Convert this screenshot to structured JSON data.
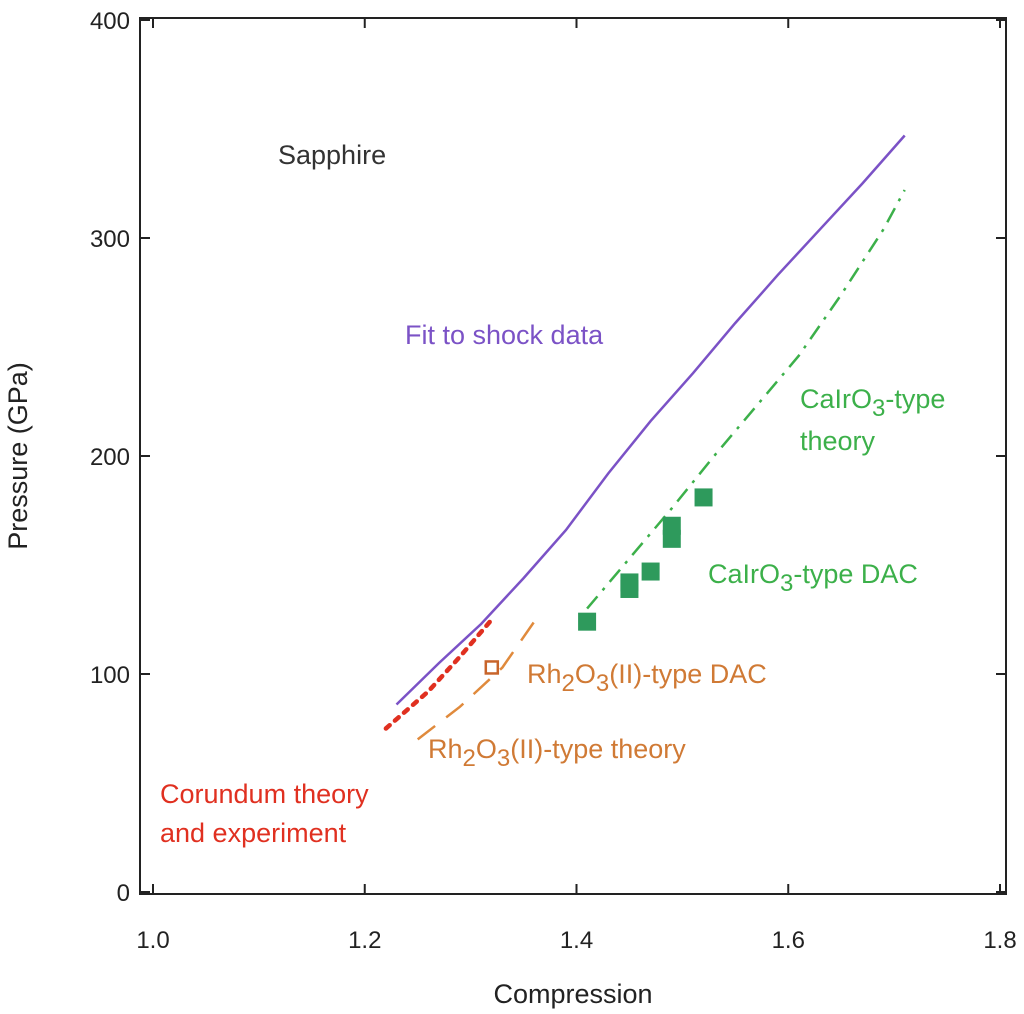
{
  "chart_data": {
    "type": "scatter",
    "title": "",
    "xlabel": "Compression",
    "ylabel": "Pressure (GPa)",
    "xlim": [
      1.0,
      1.8
    ],
    "ylim": [
      0,
      400
    ],
    "x_ticks": [
      "1.0",
      "1.2",
      "1.4",
      "1.6",
      "1.8"
    ],
    "x_tick_values": [
      1.0,
      1.2,
      1.4,
      1.6,
      1.8
    ],
    "y_ticks": [
      "0",
      "100",
      "200",
      "300",
      "400"
    ],
    "y_tick_values": [
      0,
      100,
      200,
      300,
      400
    ],
    "grid": false,
    "legend": "none",
    "series": [
      {
        "name": "Fit to shock data",
        "kind": "line",
        "style": "solid",
        "color": "#7b52c6",
        "x": [
          1.23,
          1.27,
          1.31,
          1.35,
          1.39,
          1.43,
          1.47,
          1.51,
          1.55,
          1.59,
          1.63,
          1.67,
          1.71
        ],
        "y": [
          86,
          105,
          123,
          144,
          166,
          192,
          216,
          238,
          261,
          283,
          304,
          325,
          347
        ]
      },
      {
        "name": "CaIrO3-type theory",
        "kind": "line",
        "style": "dashdot",
        "color": "#3cb04a",
        "x": [
          1.41,
          1.45,
          1.49,
          1.53,
          1.57,
          1.61,
          1.65,
          1.69,
          1.71
        ],
        "y": [
          130,
          153,
          176,
          200,
          223,
          246,
          274,
          304,
          322
        ]
      },
      {
        "name": "CaIrO3-type DAC",
        "kind": "marker",
        "marker": "filled-square",
        "color": "#2e9a5c",
        "x": [
          1.41,
          1.45,
          1.45,
          1.47,
          1.49,
          1.49,
          1.52
        ],
        "y": [
          124,
          139,
          142,
          147,
          162,
          168,
          181
        ]
      },
      {
        "name": "Rh2O3(II)-type DAC",
        "kind": "marker",
        "marker": "open-square",
        "color": "#c8642a",
        "x": [
          1.32
        ],
        "y": [
          103
        ]
      },
      {
        "name": "Rh2O3(II)-type theory",
        "kind": "line",
        "style": "dashed",
        "color": "#e08a3c",
        "x": [
          1.25,
          1.29,
          1.33,
          1.36
        ],
        "y": [
          70,
          85,
          103,
          124
        ]
      },
      {
        "name": "Corundum theory and experiment",
        "kind": "line",
        "style": "dotted",
        "color": "#e03020",
        "x": [
          1.22,
          1.26,
          1.29,
          1.32
        ],
        "y": [
          75,
          92,
          108,
          125
        ]
      }
    ],
    "annotations": [
      {
        "text": "Sapphire",
        "color": "#333333"
      },
      {
        "text": "Fit to shock data",
        "color": "#7b52c6"
      },
      {
        "text_main": "CaIrO",
        "text_sub": "3",
        "text_tail": "-type",
        "line2": "theory",
        "color": "#3cb04a"
      },
      {
        "text_main": "CaIrO",
        "text_sub": "3",
        "text_tail": "-type DAC",
        "color": "#3cb04a"
      },
      {
        "text_main": "Rh",
        "text_sub1": "2",
        "text_mid": "O",
        "text_sub2": "3",
        "text_tail": "(II)-type DAC",
        "color": "#d07a35"
      },
      {
        "text_main": "Rh",
        "text_sub1": "2",
        "text_mid": "O",
        "text_sub2": "3",
        "text_tail": "(II)-type theory",
        "color": "#d07a35"
      },
      {
        "text": "Corundum theory",
        "line2": "and experiment",
        "color": "#e03020"
      }
    ]
  }
}
